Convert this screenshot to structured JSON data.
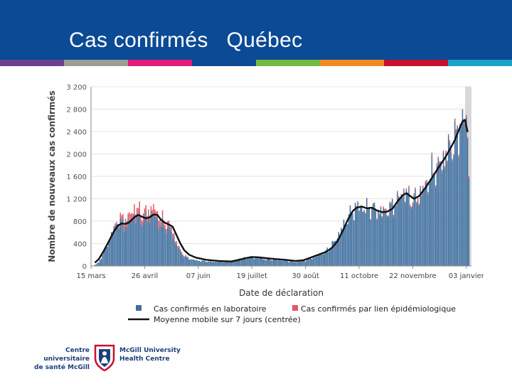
{
  "header": {
    "title": "Cas confirmés   Québec",
    "background": "#0b4a95",
    "stripe_colors": [
      "#6c3f8f",
      "#9b9e94",
      "#e0197d",
      "#0b4a95",
      "#75b843",
      "#f08a24",
      "#c8102e",
      "#1aa3c8"
    ]
  },
  "chart_data": {
    "type": "bar",
    "title": "",
    "xlabel": "Date de déclaration",
    "ylabel": "Nombre de nouveaux cas confirmés",
    "ylim": [
      0,
      3200
    ],
    "ytick_values": [
      0,
      400,
      800,
      1200,
      1600,
      2000,
      2400,
      2800,
      3200
    ],
    "ytick_labels": [
      "0",
      "400",
      "800",
      "1 200",
      "1 600",
      "2 000",
      "2 400",
      "2 800",
      "3 200"
    ],
    "xtick_labels": [
      "15 mars",
      "26 avril",
      "07 juin",
      "19 juillet",
      "30 août",
      "11 octobre",
      "22 novembre",
      "03 janvier"
    ],
    "xtick_days": [
      0,
      42,
      84,
      126,
      168,
      210,
      252,
      294
    ],
    "day_range": [
      0,
      298
    ],
    "shaded_region_days": [
      293,
      298
    ],
    "series": [
      {
        "name": "Cas confirmés en laboratoire",
        "color": "#3f6f9e",
        "anchors": [
          [
            2,
            5
          ],
          [
            6,
            60
          ],
          [
            10,
            250
          ],
          [
            14,
            450
          ],
          [
            18,
            640
          ],
          [
            21,
            780
          ],
          [
            24,
            760
          ],
          [
            28,
            730
          ],
          [
            32,
            820
          ],
          [
            35,
            900
          ],
          [
            38,
            830
          ],
          [
            42,
            820
          ],
          [
            46,
            880
          ],
          [
            49,
            920
          ],
          [
            52,
            800
          ],
          [
            56,
            700
          ],
          [
            60,
            680
          ],
          [
            63,
            600
          ],
          [
            67,
            380
          ],
          [
            70,
            250
          ],
          [
            74,
            160
          ],
          [
            78,
            120
          ],
          [
            84,
            95
          ],
          [
            95,
            75
          ],
          [
            108,
            80
          ],
          [
            118,
            130
          ],
          [
            124,
            150
          ],
          [
            131,
            140
          ],
          [
            138,
            120
          ],
          [
            150,
            100
          ],
          [
            160,
            70
          ],
          [
            168,
            100
          ],
          [
            176,
            170
          ],
          [
            182,
            230
          ],
          [
            186,
            300
          ],
          [
            190,
            410
          ],
          [
            195,
            600
          ],
          [
            200,
            800
          ],
          [
            204,
            950
          ],
          [
            208,
            1050
          ],
          [
            211,
            1050
          ],
          [
            215,
            1000
          ],
          [
            220,
            1040
          ],
          [
            224,
            960
          ],
          [
            229,
            950
          ],
          [
            234,
            1000
          ],
          [
            240,
            1150
          ],
          [
            243,
            1250
          ],
          [
            246,
            1300
          ],
          [
            249,
            1200
          ],
          [
            252,
            1150
          ],
          [
            256,
            1200
          ],
          [
            262,
            1400
          ],
          [
            268,
            1650
          ],
          [
            274,
            1800
          ],
          [
            279,
            2000
          ],
          [
            283,
            2150
          ],
          [
            287,
            2300
          ],
          [
            290,
            2550
          ],
          [
            292,
            2620
          ],
          [
            294,
            2450
          ],
          [
            295,
            2380
          ],
          [
            296,
            1580
          ]
        ]
      },
      {
        "name": "Cas confirmés par lien épidémiologique",
        "color": "#e05a66",
        "anchors": [
          [
            14,
            0
          ],
          [
            20,
            40
          ],
          [
            26,
            110
          ],
          [
            32,
            140
          ],
          [
            38,
            150
          ],
          [
            44,
            120
          ],
          [
            50,
            130
          ],
          [
            56,
            110
          ],
          [
            62,
            80
          ],
          [
            68,
            40
          ],
          [
            74,
            10
          ],
          [
            80,
            0
          ],
          [
            200,
            0
          ],
          [
            230,
            30
          ],
          [
            260,
            40
          ],
          [
            296,
            40
          ]
        ]
      },
      {
        "name": "Moyenne mobile sur 7 jours (centrée)",
        "color": "#111111",
        "points": [
          [
            3,
            60
          ],
          [
            6,
            120
          ],
          [
            10,
            270
          ],
          [
            14,
            440
          ],
          [
            18,
            620
          ],
          [
            21,
            720
          ],
          [
            24,
            760
          ],
          [
            27,
            750
          ],
          [
            30,
            780
          ],
          [
            34,
            870
          ],
          [
            37,
            910
          ],
          [
            40,
            880
          ],
          [
            43,
            850
          ],
          [
            46,
            870
          ],
          [
            49,
            920
          ],
          [
            52,
            910
          ],
          [
            55,
            820
          ],
          [
            58,
            770
          ],
          [
            61,
            740
          ],
          [
            64,
            700
          ],
          [
            67,
            550
          ],
          [
            70,
            400
          ],
          [
            73,
            280
          ],
          [
            77,
            200
          ],
          [
            82,
            150
          ],
          [
            90,
            110
          ],
          [
            100,
            90
          ],
          [
            110,
            80
          ],
          [
            116,
            110
          ],
          [
            121,
            140
          ],
          [
            126,
            160
          ],
          [
            131,
            155
          ],
          [
            137,
            140
          ],
          [
            144,
            125
          ],
          [
            152,
            110
          ],
          [
            160,
            90
          ],
          [
            166,
            100
          ],
          [
            172,
            150
          ],
          [
            178,
            200
          ],
          [
            184,
            250
          ],
          [
            189,
            330
          ],
          [
            193,
            440
          ],
          [
            197,
            620
          ],
          [
            201,
            820
          ],
          [
            205,
            980
          ],
          [
            208,
            1040
          ],
          [
            212,
            1060
          ],
          [
            216,
            1030
          ],
          [
            220,
            1040
          ],
          [
            224,
            990
          ],
          [
            228,
            960
          ],
          [
            232,
            970
          ],
          [
            236,
            1020
          ],
          [
            240,
            1150
          ],
          [
            244,
            1260
          ],
          [
            247,
            1300
          ],
          [
            250,
            1250
          ],
          [
            253,
            1200
          ],
          [
            257,
            1250
          ],
          [
            262,
            1400
          ],
          [
            267,
            1570
          ],
          [
            272,
            1750
          ],
          [
            277,
            1920
          ],
          [
            281,
            2080
          ],
          [
            285,
            2250
          ],
          [
            288,
            2420
          ],
          [
            291,
            2580
          ],
          [
            293,
            2610
          ],
          [
            295,
            2390
          ]
        ]
      }
    ],
    "legend": [
      {
        "label": "Cas confirmés en laboratoire",
        "kind": "square",
        "color": "#3f6f9e"
      },
      {
        "label": "Cas confirmés par lien épidémiologique",
        "kind": "square",
        "color": "#e05a66"
      },
      {
        "label": "Moyenne mobile sur 7 jours (centrée)",
        "kind": "line",
        "color": "#111111"
      }
    ],
    "legend_position": "bottom"
  },
  "footer": {
    "left_line1": "Centre universitaire",
    "left_line2": "de santé McGill",
    "right_line1": "McGill University",
    "right_line2": "Health Centre"
  }
}
